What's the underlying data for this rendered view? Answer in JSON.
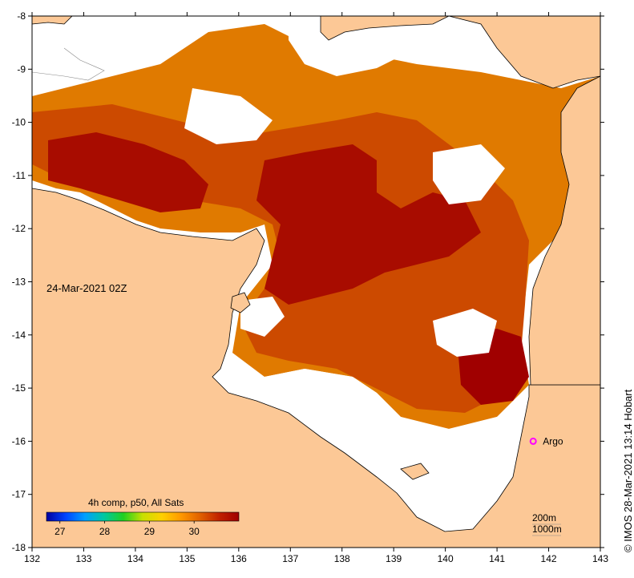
{
  "map": {
    "timestamp": "24-Mar-2021 02Z",
    "colorbar_title": "4h comp, p50, All Sats",
    "colorbar_ticks": [
      "27",
      "28",
      "29",
      "30"
    ],
    "colorbar_range": [
      26.7,
      31.0
    ],
    "colorbar_colors": [
      "#0000a0",
      "#0044ff",
      "#00a0ff",
      "#00c8a0",
      "#20d020",
      "#c8e000",
      "#ffd000",
      "#ff9800",
      "#e06000",
      "#c02000",
      "#a00000"
    ],
    "argo_label": "Argo",
    "argo_position": {
      "lon": 141.7,
      "lat": -16.0
    },
    "bathy_labels": [
      "200m",
      "1000m"
    ],
    "credit": "© IMOS 28-Mar-2021 13:14 Hobart",
    "lon_ticks": [
      "132",
      "133",
      "134",
      "135",
      "136",
      "137",
      "138",
      "139",
      "140",
      "141",
      "142",
      "143"
    ],
    "lat_ticks": [
      "-8",
      "-9",
      "-10",
      "-11",
      "-12",
      "-13",
      "-14",
      "-15",
      "-16",
      "-17",
      "-18"
    ],
    "lon_range": [
      132,
      143
    ],
    "lat_range": [
      -18,
      -8
    ],
    "colors": {
      "land": "#fcc896",
      "sst_hot": "#a00000",
      "sst_mid": "#d85000",
      "sst_warm": "#e87800",
      "argo_marker": "#ff00ff"
    }
  }
}
